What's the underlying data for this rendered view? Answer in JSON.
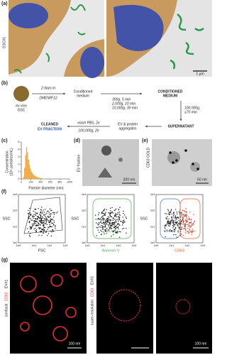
{
  "panels": {
    "a": {
      "letter": "(a)",
      "side_label": "GSC#1",
      "scale": "1 µm"
    },
    "b": {
      "letter": "(b)",
      "source_top": "ex vivo",
      "source_bottom": "GSC",
      "step1_top": "2 days in",
      "step1_bottom": "DMEM/F12",
      "cm_top": "Conditioned",
      "cm_bottom": "medium",
      "spin1": [
        "300g, 5 min",
        "2,000g, 10 min",
        "10,000g, 30 min"
      ],
      "cm2_top": "CONDITIONED",
      "cm2_bottom": "MEDIUM",
      "spin2": [
        "100,000g,",
        "≥70 min"
      ],
      "supernatant": "SUPERNATANT",
      "pellet_top": "EV & protein",
      "pellet_bottom": "aggregates",
      "wash": [
        "wash PBS, 2x",
        "100,000g, 2h"
      ],
      "cleaned_top": "CLEANED",
      "cleaned_bottom": "EV FRACTION"
    },
    "c": {
      "letter": "(c)",
      "ylabel": "Concentration",
      "ylabel2": "(10⁸ particles/mL)",
      "xlabel": "Particle diameter (nm)",
      "bins": [
        40,
        60,
        80,
        100,
        120,
        140,
        160,
        180,
        200,
        220,
        240,
        260,
        280,
        300,
        320,
        340,
        360,
        380,
        400,
        420,
        440,
        460,
        480,
        500
      ],
      "values": [
        0.3,
        1.5,
        3.2,
        4.3,
        3.6,
        2.6,
        1.9,
        1.4,
        1.0,
        0.8,
        0.6,
        0.5,
        0.4,
        0.3,
        0.25,
        0.2,
        0.15,
        0.12,
        0.1,
        0.08,
        0.06,
        0.05,
        0.04
      ],
      "color": "#f2a93b",
      "xlim": [
        0,
        1000
      ],
      "ylim": [
        0,
        5
      ],
      "xticks": [
        0,
        200,
        400,
        600,
        800,
        1000
      ],
      "yticks": [
        0,
        1,
        2,
        3,
        4,
        5
      ]
    },
    "d": {
      "letter": "(d)",
      "side_label": "EV fraction",
      "scale": "200 nm"
    },
    "e": {
      "letter": "(e)",
      "side_label": "CD63 GOLD",
      "scale": "50 nm"
    },
    "f": {
      "letter": "(f)",
      "ticks": [
        "1e0",
        "1e1",
        "1e2",
        "1e3"
      ],
      "ylabel": "SSC",
      "plots": [
        {
          "xlabel": "FSC"
        },
        {
          "xlabel": "Annexin V",
          "gates": [
            "95.94%"
          ]
        },
        {
          "xlabel": "CD63",
          "gates": [
            "52.64%",
            "41.68%"
          ]
        }
      ]
    },
    "g": {
      "letter": "(g)",
      "left_label_a": "EV#1",
      "left_label_b": "CD63",
      "left_label_c": "confocal",
      "mid_label_a": "EV#1",
      "mid_label_b": "CD63",
      "mid_label_c": "super-resolution",
      "scale_left": "100 nm",
      "scale_right": "100 nm"
    }
  }
}
